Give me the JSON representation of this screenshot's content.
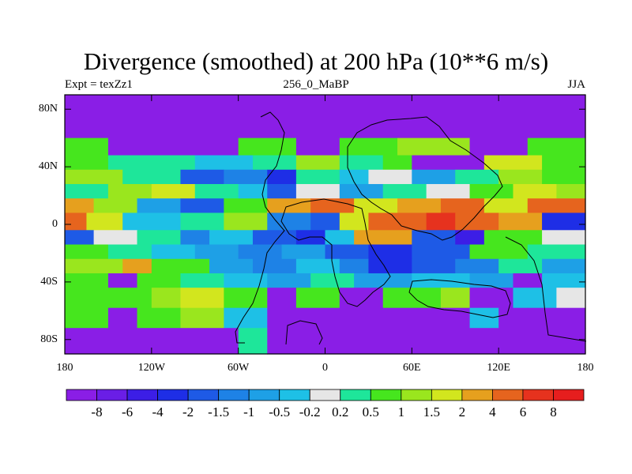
{
  "chart_data": {
    "type": "heatmap",
    "title": "Divergence (smoothed) at 200 hPa (10**6 m/s)",
    "subtitle_left": "Expt = texZz1",
    "subtitle_center": "256_0_MaBP",
    "subtitle_right": "JJA",
    "x_ticks": [
      "180",
      "120W",
      "60W",
      "0",
      "60E",
      "120E",
      "180"
    ],
    "y_ticks": [
      "80N",
      "40N",
      "0",
      "40S",
      "80S"
    ],
    "x_range_deg": [
      -180,
      180
    ],
    "y_range_deg": [
      -90,
      90
    ],
    "colorbar": {
      "levels": [
        "-8",
        "-6",
        "-4",
        "-2",
        "-1.5",
        "-1",
        "-0.5",
        "-0.2",
        "0.2",
        "0.5",
        "1",
        "1.5",
        "2",
        "4",
        "6",
        "8"
      ],
      "colors": [
        "#8a1ee6",
        "#6a1ee6",
        "#3c1ee6",
        "#1e2ee6",
        "#1e5ae6",
        "#1e82e6",
        "#1ea0e6",
        "#1ec0e6",
        "#e6e6e6",
        "#1ee69a",
        "#46e61e",
        "#9ae61e",
        "#d2e61e",
        "#e6a01e",
        "#e6641e",
        "#e6321e",
        "#e61e1e"
      ]
    },
    "bands": [
      {
        "lat_n": 90,
        "lat_s": 60,
        "segments": [
          [
            -180,
            180,
            0
          ]
        ]
      },
      {
        "lat_n": 60,
        "lat_s": 48,
        "segments": [
          [
            -180,
            -150,
            10
          ],
          [
            -150,
            -60,
            0
          ],
          [
            -60,
            -20,
            10
          ],
          [
            -20,
            10,
            0
          ],
          [
            10,
            50,
            10
          ],
          [
            50,
            100,
            11
          ],
          [
            100,
            140,
            0
          ],
          [
            140,
            180,
            10
          ]
        ]
      },
      {
        "lat_n": 48,
        "lat_s": 38,
        "segments": [
          [
            -180,
            -150,
            10
          ],
          [
            -150,
            -90,
            9
          ],
          [
            -90,
            -50,
            7
          ],
          [
            -50,
            -20,
            9
          ],
          [
            -20,
            10,
            11
          ],
          [
            10,
            40,
            9
          ],
          [
            40,
            60,
            10
          ],
          [
            60,
            110,
            0
          ],
          [
            110,
            150,
            12
          ],
          [
            150,
            180,
            10
          ]
        ]
      },
      {
        "lat_n": 38,
        "lat_s": 28,
        "segments": [
          [
            -180,
            -140,
            11
          ],
          [
            -140,
            -100,
            9
          ],
          [
            -100,
            -70,
            4
          ],
          [
            -70,
            -40,
            5
          ],
          [
            -40,
            -20,
            3
          ],
          [
            -20,
            10,
            9
          ],
          [
            10,
            30,
            7
          ],
          [
            30,
            60,
            8
          ],
          [
            60,
            90,
            6
          ],
          [
            90,
            120,
            9
          ],
          [
            120,
            150,
            11
          ],
          [
            150,
            180,
            10
          ]
        ]
      },
      {
        "lat_n": 28,
        "lat_s": 18,
        "segments": [
          [
            -180,
            -150,
            9
          ],
          [
            -150,
            -120,
            11
          ],
          [
            -120,
            -90,
            12
          ],
          [
            -90,
            -60,
            9
          ],
          [
            -60,
            -40,
            7
          ],
          [
            -40,
            -20,
            4
          ],
          [
            -20,
            10,
            8
          ],
          [
            10,
            40,
            6
          ],
          [
            40,
            70,
            9
          ],
          [
            70,
            100,
            8
          ],
          [
            100,
            130,
            10
          ],
          [
            130,
            160,
            12
          ],
          [
            160,
            180,
            11
          ]
        ]
      },
      {
        "lat_n": 18,
        "lat_s": 8,
        "segments": [
          [
            -180,
            -160,
            13
          ],
          [
            -160,
            -130,
            11
          ],
          [
            -130,
            -100,
            6
          ],
          [
            -100,
            -70,
            4
          ],
          [
            -70,
            -40,
            10
          ],
          [
            -40,
            -10,
            13
          ],
          [
            -10,
            20,
            14
          ],
          [
            20,
            50,
            12
          ],
          [
            50,
            80,
            13
          ],
          [
            80,
            110,
            14
          ],
          [
            110,
            140,
            12
          ],
          [
            140,
            180,
            14
          ]
        ]
      },
      {
        "lat_n": 8,
        "lat_s": -4,
        "segments": [
          [
            -180,
            -165,
            14
          ],
          [
            -165,
            -140,
            12
          ],
          [
            -140,
            -100,
            7
          ],
          [
            -100,
            -70,
            9
          ],
          [
            -70,
            -40,
            11
          ],
          [
            -40,
            -10,
            5
          ],
          [
            -10,
            10,
            4
          ],
          [
            10,
            30,
            12
          ],
          [
            30,
            70,
            14
          ],
          [
            70,
            90,
            15
          ],
          [
            90,
            120,
            14
          ],
          [
            120,
            150,
            13
          ],
          [
            150,
            180,
            3
          ]
        ]
      },
      {
        "lat_n": -4,
        "lat_s": -14,
        "segments": [
          [
            -180,
            -160,
            4
          ],
          [
            -160,
            -130,
            8
          ],
          [
            -130,
            -100,
            9
          ],
          [
            -100,
            -80,
            5
          ],
          [
            -80,
            -50,
            7
          ],
          [
            -50,
            -20,
            4
          ],
          [
            -20,
            0,
            3
          ],
          [
            0,
            20,
            7
          ],
          [
            20,
            60,
            13
          ],
          [
            60,
            90,
            4
          ],
          [
            90,
            110,
            2
          ],
          [
            110,
            150,
            10
          ],
          [
            150,
            180,
            8
          ]
        ]
      },
      {
        "lat_n": -14,
        "lat_s": -24,
        "segments": [
          [
            -180,
            -150,
            10
          ],
          [
            -150,
            -120,
            9
          ],
          [
            -120,
            -90,
            7
          ],
          [
            -90,
            -60,
            6
          ],
          [
            -60,
            -30,
            5
          ],
          [
            -30,
            0,
            6
          ],
          [
            0,
            30,
            4
          ],
          [
            30,
            60,
            3
          ],
          [
            60,
            100,
            4
          ],
          [
            100,
            140,
            10
          ],
          [
            140,
            180,
            9
          ]
        ]
      },
      {
        "lat_n": -24,
        "lat_s": -34,
        "segments": [
          [
            -180,
            -140,
            11
          ],
          [
            -140,
            -120,
            13
          ],
          [
            -120,
            -80,
            10
          ],
          [
            -80,
            -50,
            6
          ],
          [
            -50,
            -20,
            5
          ],
          [
            -20,
            10,
            7
          ],
          [
            10,
            30,
            5
          ],
          [
            30,
            60,
            3
          ],
          [
            60,
            90,
            4
          ],
          [
            90,
            120,
            5
          ],
          [
            120,
            150,
            9
          ],
          [
            150,
            180,
            6
          ]
        ]
      },
      {
        "lat_n": -34,
        "lat_s": -44,
        "segments": [
          [
            -180,
            -150,
            10
          ],
          [
            -150,
            -130,
            0
          ],
          [
            -130,
            -100,
            10
          ],
          [
            -100,
            -70,
            9
          ],
          [
            -70,
            -40,
            7
          ],
          [
            -40,
            -10,
            6
          ],
          [
            -10,
            20,
            9
          ],
          [
            20,
            60,
            6
          ],
          [
            60,
            100,
            7
          ],
          [
            100,
            130,
            6
          ],
          [
            130,
            150,
            0
          ],
          [
            150,
            180,
            7
          ]
        ]
      },
      {
        "lat_n": -44,
        "lat_s": -58,
        "segments": [
          [
            -180,
            -120,
            10
          ],
          [
            -120,
            -100,
            11
          ],
          [
            -100,
            -70,
            12
          ],
          [
            -70,
            -40,
            10
          ],
          [
            -40,
            -20,
            0
          ],
          [
            -20,
            10,
            10
          ],
          [
            10,
            40,
            0
          ],
          [
            40,
            80,
            10
          ],
          [
            80,
            100,
            11
          ],
          [
            100,
            130,
            0
          ],
          [
            130,
            160,
            7
          ],
          [
            160,
            180,
            8
          ]
        ]
      },
      {
        "lat_n": -58,
        "lat_s": -72,
        "segments": [
          [
            -180,
            -150,
            10
          ],
          [
            -150,
            -130,
            0
          ],
          [
            -130,
            -100,
            10
          ],
          [
            -100,
            -70,
            11
          ],
          [
            -70,
            -40,
            7
          ],
          [
            -40,
            -20,
            0
          ],
          [
            -20,
            40,
            0
          ],
          [
            40,
            100,
            0
          ],
          [
            100,
            120,
            7
          ],
          [
            120,
            140,
            0
          ],
          [
            140,
            180,
            0
          ]
        ]
      },
      {
        "lat_n": -72,
        "lat_s": -90,
        "segments": [
          [
            -180,
            -60,
            0
          ],
          [
            -60,
            -40,
            9
          ],
          [
            -40,
            180,
            0
          ]
        ]
      }
    ]
  }
}
